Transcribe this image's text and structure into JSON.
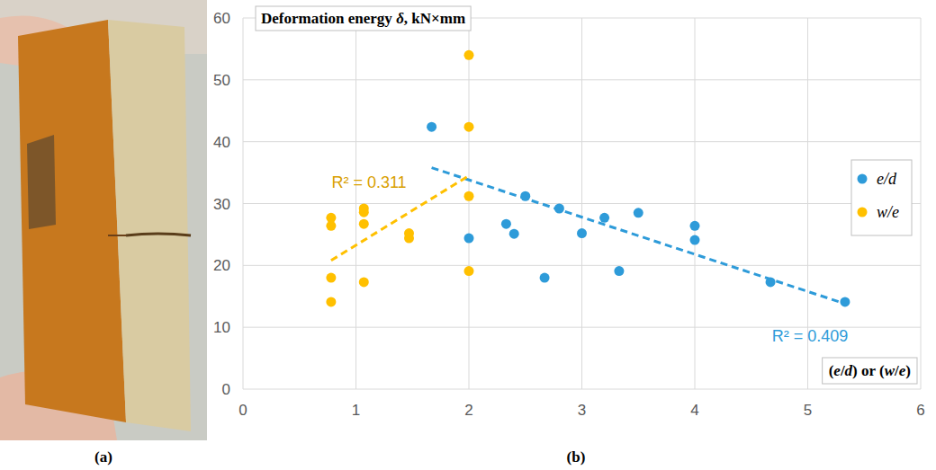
{
  "chart_data": {
    "type": "scatter",
    "title": "Deformation energy δ, kN×mm",
    "x_label": "(e/d) or (w/e)",
    "xlim": [
      0,
      6
    ],
    "xticks": [
      0,
      1,
      2,
      3,
      4,
      5,
      6
    ],
    "ylim": [
      0,
      60
    ],
    "yticks": [
      0,
      10,
      20,
      30,
      40,
      50,
      60
    ],
    "grid": true,
    "legend": "right",
    "series": [
      {
        "name": "e/d",
        "color": "#2e9bd9",
        "marker": "circle",
        "x": [
          1.67,
          2.0,
          2.33,
          2.4,
          2.5,
          2.67,
          2.8,
          3.0,
          3.2,
          3.33,
          3.5,
          4.0,
          4.0,
          4.67,
          5.33
        ],
        "values": [
          42.4,
          24.4,
          26.7,
          25.1,
          31.2,
          18.0,
          29.2,
          25.2,
          27.7,
          19.1,
          28.5,
          26.4,
          24.1,
          17.3,
          14.1
        ],
        "trend": {
          "x": [
            1.67,
            5.33
          ],
          "values": [
            35.8,
            13.8
          ],
          "line_style": "dashed"
        },
        "r2": "R² = 0.409"
      },
      {
        "name": "w/e",
        "color": "#ffc000",
        "marker": "circle",
        "x": [
          0.78,
          0.78,
          0.78,
          0.78,
          1.07,
          1.07,
          1.07,
          1.07,
          1.47,
          1.47,
          2.0,
          2.0,
          2.0,
          2.0
        ],
        "values": [
          27.7,
          26.4,
          18.0,
          14.1,
          29.2,
          28.6,
          26.7,
          17.3,
          25.2,
          24.4,
          54.0,
          42.4,
          31.2,
          19.1
        ],
        "trend": {
          "x": [
            0.78,
            2.0
          ],
          "values": [
            20.8,
            34.5
          ],
          "line_style": "dashed"
        },
        "r2": "R² = 0.311"
      }
    ]
  },
  "panels": {
    "a": "(a)",
    "b": "(b)"
  }
}
